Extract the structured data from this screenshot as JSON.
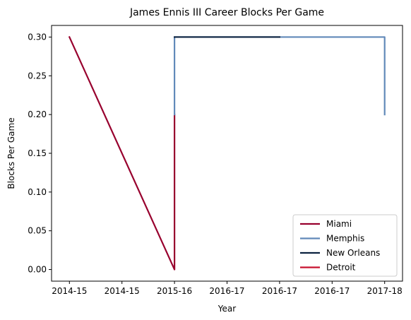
{
  "chart_data": {
    "type": "line",
    "title": "James Ennis III Career Blocks Per Game",
    "xlabel": "Year",
    "ylabel": "Blocks Per Game",
    "x_ticks": [
      "2014-15",
      "2014-15",
      "2015-16",
      "2016-17",
      "2016-17",
      "2016-17",
      "2017-18"
    ],
    "x_tick_positions": [
      0,
      0.5,
      1,
      1.5,
      2,
      2.5,
      3
    ],
    "ylim": [
      -0.015,
      0.315
    ],
    "y_ticks": [
      "0.00",
      "0.05",
      "0.10",
      "0.15",
      "0.20",
      "0.25",
      "0.30"
    ],
    "y_tick_values": [
      0,
      0.05,
      0.1,
      0.15,
      0.2,
      0.25,
      0.3
    ],
    "xlim": [
      -0.17,
      3.17
    ],
    "grid": false,
    "legend_position": "lower right",
    "series": [
      {
        "name": "Miami",
        "color": "#98002E",
        "x": [
          0,
          1,
          1
        ],
        "y": [
          0.3,
          0.0,
          0.2
        ]
      },
      {
        "name": "Memphis",
        "color": "#6189B9",
        "x": [
          1,
          1,
          3,
          3
        ],
        "y": [
          0.2,
          0.3,
          0.3,
          0.2
        ]
      },
      {
        "name": "New Orleans",
        "color": "#0C2340",
        "x": [
          1,
          2
        ],
        "y": [
          0.3,
          0.3
        ]
      },
      {
        "name": "Detroit",
        "color": "#C8102E",
        "x": [],
        "y": []
      }
    ]
  }
}
